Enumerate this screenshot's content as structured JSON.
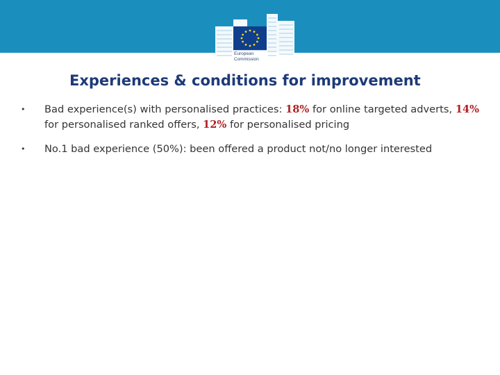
{
  "header": {
    "brand_color": "#1a8fbe",
    "logo_icon": "european-commission-logo-icon",
    "logo_text_line1": "European",
    "logo_text_line2": "Commission"
  },
  "slide": {
    "title": "Experiences & conditions for improvement",
    "accent_color": "#b11f24",
    "title_color": "#1d3a78",
    "bullets": [
      {
        "bullet_icon": "bullet-dot-icon",
        "part1": "Bad experience(s) with personalised practices: ",
        "hl1": "18%",
        "part2": " for online targeted adverts, ",
        "hl2": "14%",
        "part3": " for personalised ranked offers, ",
        "hl3": "12%",
        "part4": " for personalised pricing"
      },
      {
        "bullet_icon": "bullet-dot-icon",
        "text": "No.1 bad experience (50%): been offered a product not/no longer interested"
      }
    ]
  }
}
